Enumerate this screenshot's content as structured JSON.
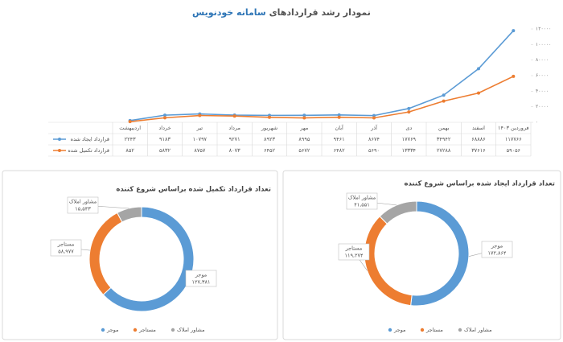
{
  "chart_data": [
    {
      "type": "line",
      "title": "نمودار رشد قراردادهای",
      "title_highlight": "سامانه خودنویس",
      "categories": [
        "اردیبهشت",
        "خرداد",
        "تیر",
        "مرداد",
        "شهریور",
        "مهر",
        "آبان",
        "آذر",
        "دی",
        "بهمن",
        "اسفند",
        "فروردین ۱۴۰۳"
      ],
      "series": [
        {
          "name": "قرارداد ایجاد شده",
          "color": "#5b9bd5",
          "values": [
            2243,
            9183,
            10797,
            9271,
            8923,
            8995,
            9461,
            8674,
            17769,
            34942,
            68886,
            117766
          ],
          "value_labels": [
            "۲۲۴۳",
            "۹۱۸۳",
            "۱۰۷۹۷",
            "۹۲۷۱",
            "۸۹۲۳",
            "۸۹۹۵",
            "۹۴۶۱",
            "۸۶۷۴",
            "۱۷۷۶۹",
            "۳۴۹۴۲",
            "۶۸۸۸۶",
            "۱۱۷۷۶۶"
          ]
        },
        {
          "name": "قرارداد تکمیل شده",
          "color": "#ed7d31",
          "values": [
            852,
            5832,
            8757,
            8073,
            6452,
            5672,
            6482,
            5690,
            13334,
            27288,
            37616,
            59056
          ],
          "value_labels": [
            "۸۵۲",
            "۵۸۳۲",
            "۸۷۵۷",
            "۸۰۷۳",
            "۶۴۵۲",
            "۵۶۷۲",
            "۶۴۸۲",
            "۵۶۹۰",
            "۱۳۳۳۴",
            "۲۷۲۸۸",
            "۳۷۶۱۶",
            "۵۹۰۵۶"
          ]
        }
      ],
      "ylim": [
        0,
        120000
      ],
      "yticks": [
        {
          "value": 0,
          "label": "۰"
        },
        {
          "value": 20000,
          "label": "۲۰۰۰۰"
        },
        {
          "value": 40000,
          "label": "۴۰۰۰۰"
        },
        {
          "value": 60000,
          "label": "۶۰۰۰۰"
        },
        {
          "value": 80000,
          "label": "۸۰۰۰۰"
        },
        {
          "value": 100000,
          "label": "۱۰۰۰۰۰"
        },
        {
          "value": 120000,
          "label": "۱۲۰۰۰۰"
        }
      ]
    },
    {
      "type": "donut",
      "title": "تعداد قرارداد تکمیل شده براساس شروع کننده",
      "categories": [
        "موجر",
        "مستاجر",
        "مشاور املاک"
      ],
      "colors": [
        "#5b9bd5",
        "#ed7d31",
        "#a5a5a5"
      ],
      "values": [
        127381,
        58977,
        15543
      ],
      "value_labels": [
        "۱۲۷,۳۸۱",
        "۵۸,۹۷۷",
        "۱۵,۵۴۳"
      ]
    },
    {
      "type": "donut",
      "title": "تعداد قرارداد ایجاد شده براساس شروع کننده",
      "categories": [
        "موجر",
        "مستاجر",
        "مشاور املاک"
      ],
      "colors": [
        "#5b9bd5",
        "#ed7d31",
        "#a5a5a5"
      ],
      "values": [
        172864,
        119274,
        41551
      ],
      "value_labels": [
        "۱۷۲,۸۶۴",
        "۱۱۹,۲۷۴",
        "۴۱,۵۵۱"
      ]
    }
  ]
}
